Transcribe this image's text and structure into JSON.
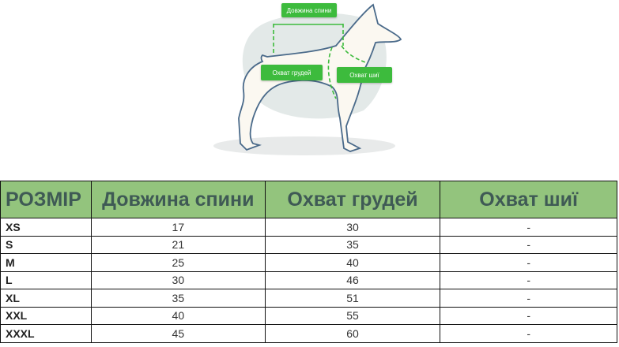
{
  "diagram": {
    "labels": {
      "back_length": "Довжина спини",
      "chest_girth": "Охват грудей",
      "neck_girth": "Охват шиї"
    },
    "accent_color": "#3dbb3d"
  },
  "table": {
    "header_color": "#93c47d",
    "headers": [
      "РОЗМІР",
      "Довжина спини",
      "Охват грудей",
      "Охват шиї"
    ],
    "rows": [
      [
        "XS",
        "17",
        "30",
        "-"
      ],
      [
        "S",
        "21",
        "35",
        "-"
      ],
      [
        "M",
        "25",
        "40",
        "-"
      ],
      [
        "L",
        "30",
        "46",
        "-"
      ],
      [
        "XL",
        "35",
        "51",
        "-"
      ],
      [
        "XXL",
        "40",
        "55",
        "-"
      ],
      [
        "XXXL",
        "45",
        "60",
        "-"
      ]
    ]
  }
}
